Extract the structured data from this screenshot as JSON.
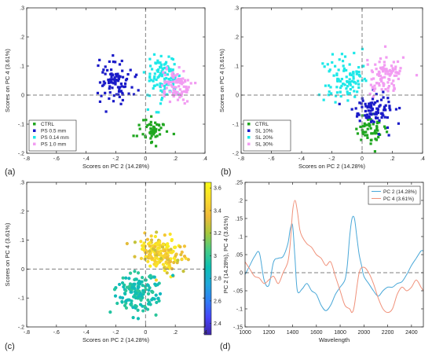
{
  "chart_data": [
    {
      "type": "scatter",
      "panel_label": "(a)",
      "xlabel": "Scores on PC 2 (14.28%)",
      "ylabel": "Scores on PC 4 (3.61%)",
      "xlim": [
        -0.8,
        0.4
      ],
      "ylim": [
        -0.2,
        0.3
      ],
      "xticks": [
        -0.8,
        -0.6,
        -0.4,
        -0.2,
        0,
        0.2,
        0.4
      ],
      "yticks": [
        -0.2,
        -0.1,
        0,
        0.1,
        0.2,
        0.3
      ],
      "reference_lines": {
        "x": 0,
        "y": 0
      },
      "legend_position": "bottom-left",
      "series": [
        {
          "name": "CTRL",
          "color": "#1fa61f",
          "marker": "square",
          "center": [
            0.05,
            -0.12
          ],
          "spread": [
            0.09,
            0.04
          ],
          "n": 55
        },
        {
          "name": "PS 0.5 mm",
          "color": "#1a1ac8",
          "marker": "square",
          "center": [
            -0.2,
            0.05
          ],
          "spread": [
            0.1,
            0.07
          ],
          "n": 95
        },
        {
          "name": "PS 0.14 mm",
          "color": "#1ee8e8",
          "marker": "square",
          "center": [
            0.12,
            0.06
          ],
          "spread": [
            0.1,
            0.07
          ],
          "n": 110
        },
        {
          "name": "PS 1.0 mm",
          "color": "#f29cf2",
          "marker": "square",
          "center": [
            0.2,
            0.03
          ],
          "spread": [
            0.09,
            0.05
          ],
          "n": 85
        }
      ]
    },
    {
      "type": "scatter",
      "panel_label": "(b)",
      "xlabel": "Scores on PC 2 (14.28%)",
      "ylabel": "Scores on PC 4 (3.61%)",
      "xlim": [
        -0.8,
        0.4
      ],
      "ylim": [
        -0.2,
        0.3
      ],
      "xticks": [
        -0.8,
        -0.6,
        -0.4,
        -0.2,
        0,
        0.2,
        0.4
      ],
      "yticks": [
        -0.2,
        -0.1,
        0,
        0.1,
        0.2,
        0.3
      ],
      "reference_lines": {
        "x": 0,
        "y": 0
      },
      "legend_position": "bottom-left",
      "series": [
        {
          "name": "CTRL",
          "color": "#1fa61f",
          "marker": "square",
          "center": [
            0.05,
            -0.12
          ],
          "spread": [
            0.09,
            0.04
          ],
          "n": 55
        },
        {
          "name": "SL 10%",
          "color": "#1a1ac8",
          "marker": "square",
          "center": [
            0.08,
            -0.05
          ],
          "spread": [
            0.12,
            0.05
          ],
          "n": 95
        },
        {
          "name": "SL 20%",
          "color": "#1ee8e8",
          "marker": "square",
          "center": [
            -0.12,
            0.06
          ],
          "spread": [
            0.12,
            0.07
          ],
          "n": 100
        },
        {
          "name": "SL 30%",
          "color": "#f29cf2",
          "marker": "square",
          "center": [
            0.15,
            0.07
          ],
          "spread": [
            0.12,
            0.06
          ],
          "n": 95
        }
      ]
    },
    {
      "type": "scatter",
      "panel_label": "(c)",
      "xlabel": "Scores on PC 2 (14.28%)",
      "ylabel": "Scores on PC 4 (3.61%)",
      "xlim": [
        -0.8,
        0.4
      ],
      "ylim": [
        -0.2,
        0.3
      ],
      "xticks": [
        -0.8,
        -0.6,
        -0.4,
        -0.2,
        0,
        0.2,
        0.4
      ],
      "yticks": [
        -0.2,
        -0.1,
        0,
        0.1,
        0.2,
        0.3
      ],
      "reference_lines": {
        "x": 0,
        "y": 0
      },
      "marker": "circle",
      "colorbar": {
        "range": [
          2.3,
          3.65
        ],
        "ticks": [
          2.4,
          2.6,
          2.8,
          3,
          3.2,
          3.4,
          3.6
        ],
        "colormap": [
          "#3e26a8",
          "#4743f8",
          "#2f7df6",
          "#1fa8db",
          "#0cbfb3",
          "#47cc85",
          "#a7c83c",
          "#f0ba39",
          "#fadb2c",
          "#f9fb15"
        ]
      },
      "clusters": [
        {
          "center": [
            0.1,
            0.05
          ],
          "spread": [
            0.13,
            0.06
          ],
          "n": 180,
          "value_range": [
            3.25,
            3.6
          ]
        },
        {
          "center": [
            -0.05,
            -0.08
          ],
          "spread": [
            0.13,
            0.06
          ],
          "n": 150,
          "value_range": [
            2.85,
            3.0
          ]
        }
      ]
    },
    {
      "type": "line",
      "panel_label": "(d)",
      "xlabel": "Wavelength",
      "ylabel": "PC 2 (14.28%), PC 4 (3.61%)",
      "xlim": [
        1000,
        2500
      ],
      "ylim": [
        -0.15,
        0.25
      ],
      "xticks": [
        1000,
        1200,
        1400,
        1600,
        1800,
        2000,
        2200,
        2400
      ],
      "yticks": [
        -0.15,
        -0.1,
        -0.05,
        0,
        0.05,
        0.1,
        0.15,
        0.2,
        0.25
      ],
      "reference_lines": {
        "y": 0
      },
      "legend_position": "top-right",
      "series": [
        {
          "name": "PC 2 (14.28%)",
          "color": "#4aa8d8",
          "x": [
            1000,
            1040,
            1080,
            1120,
            1160,
            1200,
            1240,
            1280,
            1320,
            1360,
            1380,
            1400,
            1420,
            1440,
            1480,
            1520,
            1560,
            1600,
            1640,
            1680,
            1720,
            1760,
            1800,
            1840,
            1860,
            1880,
            1900,
            1920,
            1940,
            1960,
            1980,
            2000,
            2040,
            2080,
            2120,
            2160,
            2200,
            2240,
            2280,
            2320,
            2360,
            2400,
            2440,
            2480,
            2500
          ],
          "y": [
            -0.005,
            0.02,
            0.045,
            0.055,
            -0.02,
            -0.035,
            0.03,
            0.04,
            0.045,
            0.08,
            0.12,
            0.13,
            0.04,
            -0.05,
            -0.045,
            -0.03,
            -0.05,
            -0.06,
            -0.09,
            -0.105,
            -0.09,
            -0.06,
            -0.04,
            -0.02,
            0.02,
            0.1,
            0.15,
            0.15,
            0.1,
            0.05,
            0.02,
            -0.01,
            -0.03,
            -0.05,
            -0.065,
            -0.05,
            -0.04,
            -0.04,
            -0.03,
            -0.025,
            -0.005,
            0.02,
            0.04,
            0.06,
            0.06
          ]
        },
        {
          "name": "PC 4 (3.61%)",
          "color": "#f0917a",
          "x": [
            1000,
            1040,
            1080,
            1120,
            1160,
            1200,
            1240,
            1280,
            1320,
            1360,
            1380,
            1400,
            1420,
            1440,
            1460,
            1480,
            1520,
            1560,
            1600,
            1640,
            1680,
            1720,
            1760,
            1800,
            1840,
            1880,
            1900,
            1920,
            1960,
            2000,
            2040,
            2080,
            2120,
            2160,
            2200,
            2240,
            2280,
            2320,
            2360,
            2400,
            2440,
            2480,
            2500
          ],
          "y": [
            0.03,
            0.01,
            -0.01,
            -0.015,
            -0.03,
            -0.02,
            -0.01,
            -0.03,
            0.0,
            0.03,
            0.08,
            0.17,
            0.2,
            0.17,
            0.12,
            0.1,
            0.08,
            0.07,
            0.05,
            0.04,
            0.02,
            0.03,
            -0.01,
            -0.05,
            -0.09,
            -0.1,
            -0.11,
            -0.09,
            0.0,
            0.015,
            0.0,
            -0.03,
            -0.07,
            -0.1,
            -0.11,
            -0.1,
            -0.06,
            -0.04,
            -0.05,
            -0.04,
            -0.02,
            -0.04,
            -0.05
          ]
        }
      ]
    }
  ]
}
